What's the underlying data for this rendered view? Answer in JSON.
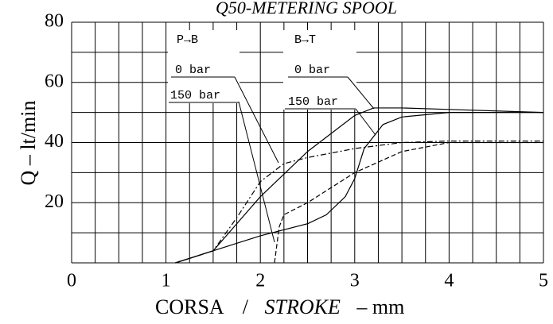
{
  "chart_data": {
    "type": "line",
    "title": "Q50-METERING SPOOL",
    "xlabel": "CORSA",
    "xlabel_sep": "/",
    "xlabel_italic": "STROKE",
    "xlabel_unit": "– mm",
    "ylabel": "Q  –  lt/min",
    "xlim": [
      0,
      5
    ],
    "ylim": [
      0,
      80
    ],
    "xticks": [
      0,
      1,
      2,
      3,
      4,
      5
    ],
    "yticks": [
      20,
      40,
      60,
      80
    ],
    "xgrid": [
      0,
      0.25,
      0.5,
      0.75,
      1,
      1.25,
      1.5,
      1.75,
      2,
      2.25,
      2.5,
      2.75,
      3,
      3.25,
      3.5,
      3.75,
      4,
      4.25,
      4.5,
      4.75,
      5
    ],
    "ygrid": [
      0,
      10,
      20,
      30,
      40,
      50,
      60,
      70,
      80
    ],
    "annotations": [
      "P→B",
      "0 bar",
      "150 bar",
      "B→T",
      "0 bar",
      "150 bar"
    ],
    "series": [
      {
        "color": "#000",
        "dash": "solid",
        "x": [
          1.1,
          1.5,
          2,
          2.5,
          3,
          3.2,
          3.5,
          4,
          5
        ],
        "values": [
          0,
          4,
          22,
          37,
          49,
          51.5,
          51.5,
          51,
          50
        ]
      },
      {
        "color": "#000",
        "dash": "solid",
        "x": [
          1.1,
          1.5,
          2,
          2.5,
          2.7,
          2.9,
          3,
          3.1,
          3.3,
          3.5,
          4,
          5
        ],
        "values": [
          0,
          4,
          9,
          13,
          16,
          22,
          28,
          38,
          46,
          48.5,
          50,
          50
        ]
      },
      {
        "color": "#000",
        "dash": "dashdot",
        "x": [
          1.1,
          1.5,
          1.75,
          2,
          2.25,
          2.5,
          3,
          3.5,
          4,
          5
        ],
        "values": [
          0,
          4,
          15,
          27,
          33,
          35,
          38,
          40,
          40.5,
          40.5
        ]
      },
      {
        "color": "#000",
        "dash": "dashed",
        "x": [
          2.15,
          2.2,
          2.25,
          2.5,
          3,
          3.5,
          4,
          5
        ],
        "values": [
          0,
          12,
          16,
          20,
          30,
          37,
          40,
          40
        ]
      }
    ]
  }
}
